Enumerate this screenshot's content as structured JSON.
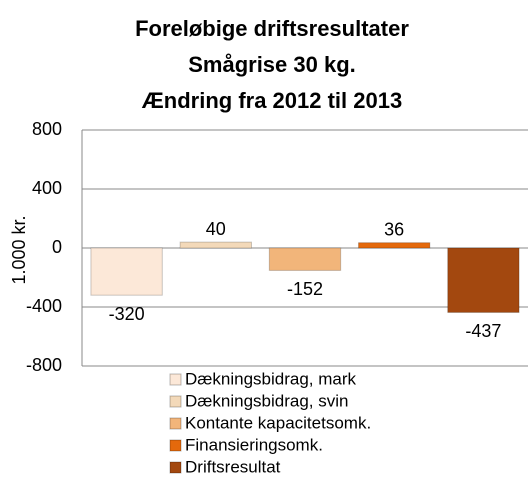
{
  "chart_data": {
    "type": "bar",
    "title": [
      "Foreløbige driftsresultater",
      "Smågrise 30 kg.",
      "Ændring fra 2012 til 2013"
    ],
    "ylabel": "1.000 kr.",
    "series": [
      {
        "name": "Dækningsbidrag, mark",
        "color": "#fce8d8",
        "values": [
          -320
        ]
      },
      {
        "name": "Dækningsbidrag, svin",
        "color": "#f3d9b9",
        "values": [
          40
        ]
      },
      {
        "name": "Kontante kapacitetsomk.",
        "color": "#f2b57a",
        "values": [
          -152
        ]
      },
      {
        "name": "Finansieringsomk.",
        "color": "#e4690c",
        "values": [
          36
        ]
      },
      {
        "name": "Driftsresultat",
        "color": "#a3480f",
        "values": [
          -437
        ]
      }
    ],
    "ylim": [
      -800,
      800
    ],
    "yticks": [
      -800,
      -400,
      0,
      400,
      800
    ],
    "grid": true,
    "legend": "bottom"
  }
}
